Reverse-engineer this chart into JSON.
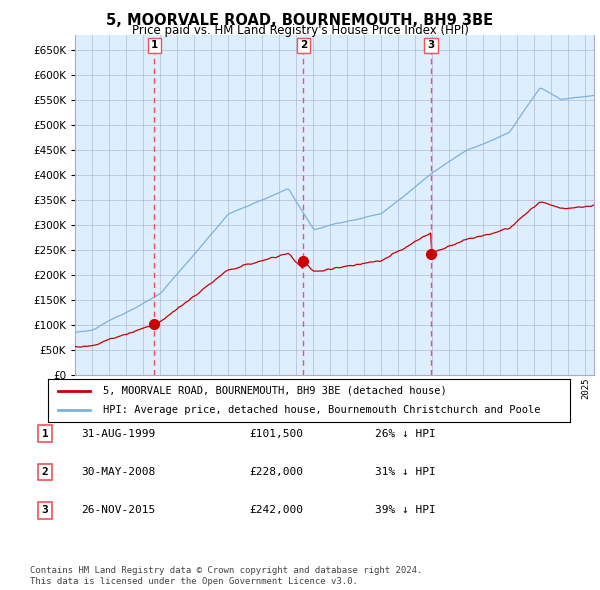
{
  "title": "5, MOORVALE ROAD, BOURNEMOUTH, BH9 3BE",
  "subtitle": "Price paid vs. HM Land Registry's House Price Index (HPI)",
  "ylim": [
    0,
    680000
  ],
  "yticks": [
    0,
    50000,
    100000,
    150000,
    200000,
    250000,
    300000,
    350000,
    400000,
    450000,
    500000,
    550000,
    600000,
    650000
  ],
  "hpi_color": "#7ab4d8",
  "price_color": "#cc0000",
  "vline_color": "#ee5555",
  "background_color": "#ffffff",
  "chart_bg_color": "#ddeeff",
  "grid_color": "#aaaacc",
  "purchases": [
    {
      "date_num": 1999.67,
      "price": 101500,
      "label": "1"
    },
    {
      "date_num": 2008.42,
      "price": 228000,
      "label": "2"
    },
    {
      "date_num": 2015.92,
      "price": 242000,
      "label": "3"
    }
  ],
  "legend_entries": [
    {
      "color": "#cc0000",
      "label": "5, MOORVALE ROAD, BOURNEMOUTH, BH9 3BE (detached house)"
    },
    {
      "color": "#7ab4d8",
      "label": "HPI: Average price, detached house, Bournemouth Christchurch and Poole"
    }
  ],
  "table_rows": [
    {
      "num": "1",
      "date": "31-AUG-1999",
      "price": "£101,500",
      "pct": "26% ↓ HPI"
    },
    {
      "num": "2",
      "date": "30-MAY-2008",
      "price": "£228,000",
      "pct": "31% ↓ HPI"
    },
    {
      "num": "3",
      "date": "26-NOV-2015",
      "price": "£242,000",
      "pct": "39% ↓ HPI"
    }
  ],
  "footer": "Contains HM Land Registry data © Crown copyright and database right 2024.\nThis data is licensed under the Open Government Licence v3.0."
}
